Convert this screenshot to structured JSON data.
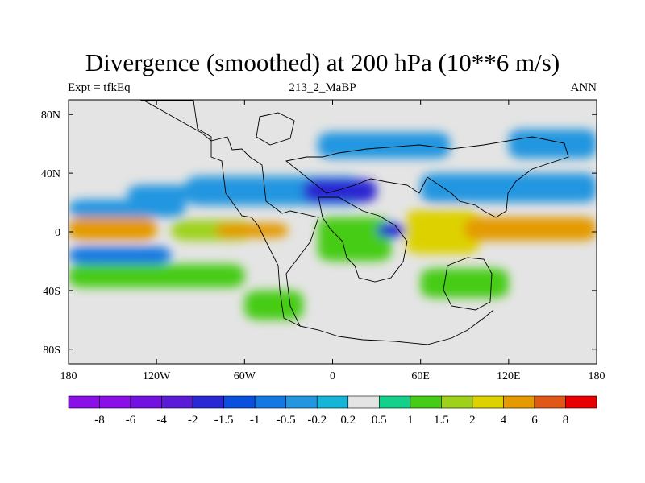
{
  "chart_data": {
    "type": "heatmap",
    "title": "Divergence (smoothed) at 200 hPa (10**6 m/s)",
    "left_string": "Expt = tfkEq",
    "center_string": "213_2_MaBP",
    "right_string": "ANN",
    "x_ticks": [
      "180",
      "120W",
      "60W",
      "0",
      "60E",
      "120E",
      "180"
    ],
    "x_tick_values": [
      -180,
      -120,
      -60,
      0,
      60,
      120,
      180
    ],
    "y_ticks": [
      "80N",
      "40N",
      "0",
      "40S",
      "80S"
    ],
    "y_tick_values": [
      80,
      40,
      0,
      -40,
      -80
    ],
    "xlim": [
      -180,
      180
    ],
    "ylim": [
      -90,
      90
    ],
    "grid": false,
    "colorbar": {
      "labels": [
        "-8",
        "-6",
        "-4",
        "-2",
        "-1.5",
        "-1",
        "-0.5",
        "-0.2",
        "0.2",
        "0.5",
        "1",
        "1.5",
        "2",
        "4",
        "6",
        "8"
      ],
      "colors": [
        "#8a10e8",
        "#7312e0",
        "#5a1ad6",
        "#2a28d2",
        "#0a50dc",
        "#1478e2",
        "#2496e0",
        "#16b4d6",
        "#e4e4e4",
        "#14d08a",
        "#46cc18",
        "#9ed21a",
        "#ddd200",
        "#e49a00",
        "#e05818",
        "#e80000"
      ]
    },
    "regions": [
      {
        "lon": [
          -180,
          -120
        ],
        "lat": [
          -6,
          10
        ],
        "value": 2.5
      },
      {
        "lon": [
          -180,
          -100
        ],
        "lat": [
          10,
          22
        ],
        "value": -1.0
      },
      {
        "lon": [
          -180,
          -110
        ],
        "lat": [
          -22,
          -10
        ],
        "value": -1.2
      },
      {
        "lon": [
          -140,
          -80
        ],
        "lat": [
          20,
          32
        ],
        "value": -0.7
      },
      {
        "lon": [
          -180,
          -60
        ],
        "lat": [
          -38,
          -22
        ],
        "value": 0.6
      },
      {
        "lon": [
          -110,
          -55
        ],
        "lat": [
          -6,
          8
        ],
        "value": 1.2
      },
      {
        "lon": [
          -80,
          -30
        ],
        "lat": [
          -4,
          6
        ],
        "value": 3.0
      },
      {
        "lon": [
          -100,
          20
        ],
        "lat": [
          18,
          38
        ],
        "value": -1.0
      },
      {
        "lon": [
          -20,
          30
        ],
        "lat": [
          20,
          36
        ],
        "value": -2.5
      },
      {
        "lon": [
          -10,
          40
        ],
        "lat": [
          -20,
          10
        ],
        "value": 0.8
      },
      {
        "lon": [
          30,
          50
        ],
        "lat": [
          -4,
          6
        ],
        "value": -2.5
      },
      {
        "lon": [
          50,
          100
        ],
        "lat": [
          -15,
          15
        ],
        "value": 1.5
      },
      {
        "lon": [
          90,
          180
        ],
        "lat": [
          -6,
          10
        ],
        "value": 2.5
      },
      {
        "lon": [
          60,
          180
        ],
        "lat": [
          20,
          40
        ],
        "value": -1.0
      },
      {
        "lon": [
          -10,
          80
        ],
        "lat": [
          50,
          68
        ],
        "value": -0.7
      },
      {
        "lon": [
          120,
          180
        ],
        "lat": [
          50,
          70
        ],
        "value": -0.7
      },
      {
        "lon": [
          -60,
          -20
        ],
        "lat": [
          -60,
          -40
        ],
        "value": 0.6
      },
      {
        "lon": [
          60,
          120
        ],
        "lat": [
          -45,
          -25
        ],
        "value": 0.5
      }
    ]
  }
}
